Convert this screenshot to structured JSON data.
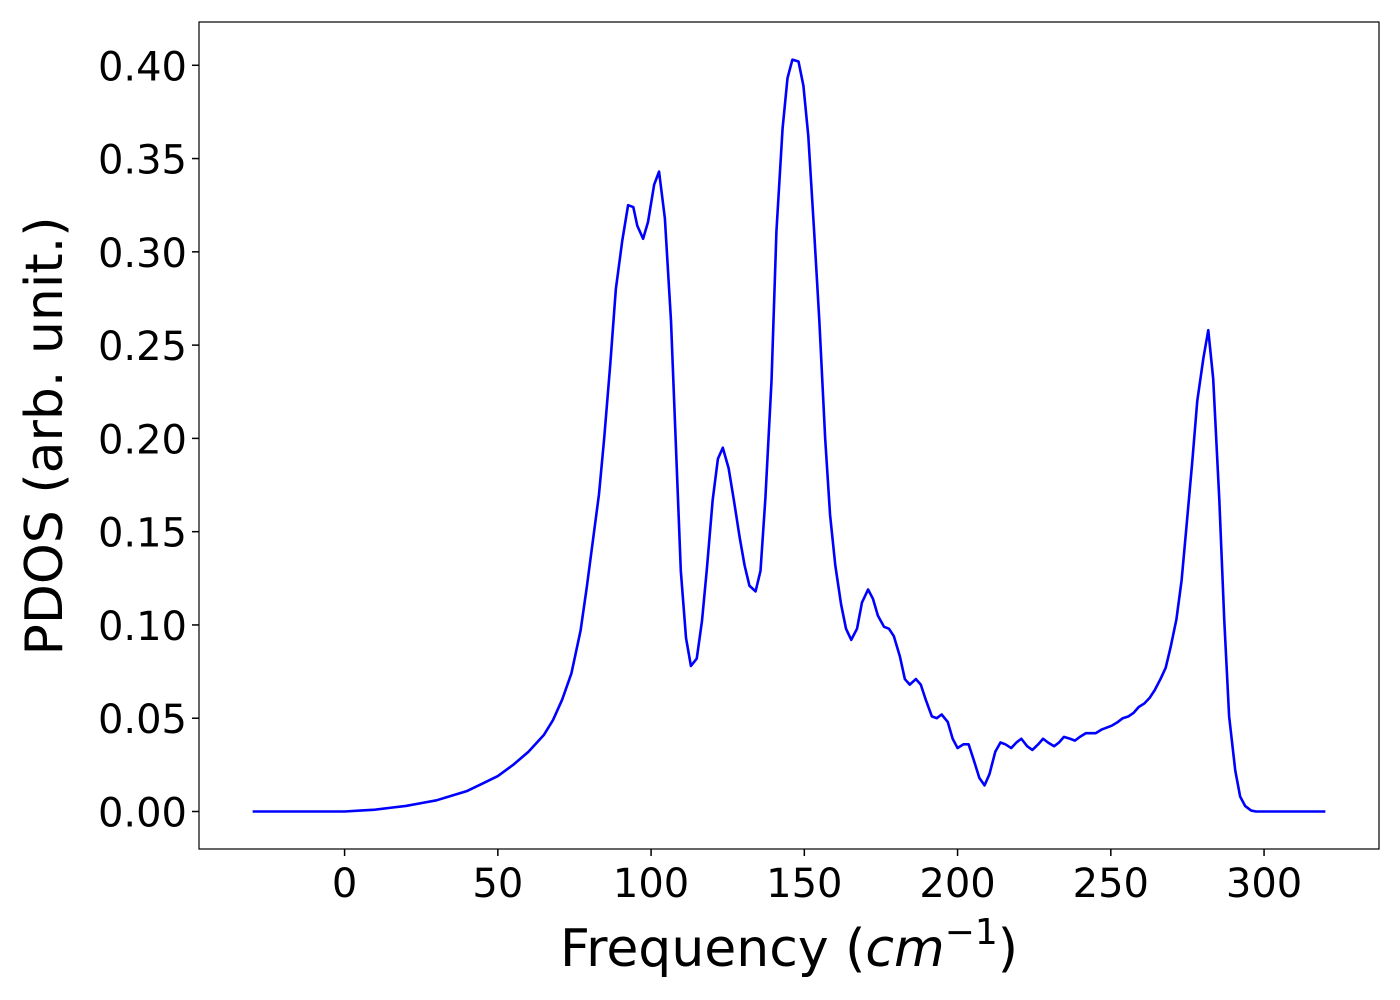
{
  "chart_data": {
    "type": "line",
    "xlabel": [
      "Frequency (",
      "cm",
      "−1",
      ")"
    ],
    "ylabel": "PDOS (arb. unit.)",
    "xlim": [
      -47.5,
      337.5
    ],
    "ylim": [
      -0.0201,
      0.4232
    ],
    "xticks": [
      0,
      50,
      100,
      150,
      200,
      250,
      300
    ],
    "yticks": [
      {
        "value": 0,
        "label": "0.00"
      },
      0.05,
      {
        "value": 0.1,
        "label": "0.10"
      },
      0.15,
      {
        "value": 0.2,
        "label": "0.20"
      },
      0.25,
      {
        "value": 0.3,
        "label": "0.30"
      },
      0.35,
      {
        "value": 0.4,
        "label": "0.40"
      }
    ],
    "x": [
      -30,
      -20,
      -10,
      0,
      5,
      10,
      15,
      20,
      25,
      30,
      35,
      40,
      45,
      50,
      55,
      60,
      65,
      68,
      71,
      74,
      77,
      79,
      81,
      83,
      84.7,
      86.7,
      88.5,
      90.6,
      92.5,
      94.2,
      95.5,
      97.4,
      99,
      101,
      102.6,
      104.5,
      106.5,
      109.7,
      111.4,
      113,
      114.9,
      116.6,
      118.2,
      120.1,
      121.8,
      123.4,
      125.3,
      127,
      128.9,
      130.5,
      132.1,
      134.1,
      135.7,
      137.3,
      139.3,
      140.9,
      142.9,
      144.5,
      146.1,
      148.1,
      149.7,
      151.3,
      153.2,
      154.9,
      156.8,
      158.4,
      160.1,
      162,
      163.6,
      165.3,
      167.2,
      168.8,
      170.8,
      172.4,
      174,
      176,
      177.6,
      179.2,
      181.2,
      182.8,
      184.4,
      186.4,
      188,
      189.6,
      191.6,
      193.2,
      194.8,
      196.8,
      198.4,
      200,
      201.9,
      203.6,
      205.2,
      207.1,
      208.8,
      210.4,
      212.3,
      214,
      215.6,
      217.5,
      219.2,
      220.8,
      222.7,
      224.4,
      226.3,
      227.9,
      229.5,
      231.5,
      233.1,
      234.7,
      236.7,
      238.3,
      239.9,
      241.9,
      243.5,
      245.1,
      247.1,
      248.7,
      250.3,
      252.3,
      253.9,
      255.8,
      257.5,
      259.1,
      261,
      262.7,
      264.3,
      266.2,
      267.9,
      269.5,
      271.4,
      273.1,
      274.7,
      276.6,
      278.2,
      280.2,
      281.8,
      283.4,
      285.4,
      287,
      288.6,
      290.6,
      292.2,
      293.8,
      295.8,
      297.4,
      305,
      320
    ],
    "series": [
      {
        "color": "#0000ff",
        "values": [
          0,
          0,
          0,
          0,
          0.0005,
          0.001,
          0.002,
          0.003,
          0.0045,
          0.006,
          0.0085,
          0.011,
          0.015,
          0.019,
          0.025,
          0.032,
          0.041,
          0.049,
          0.06,
          0.074,
          0.097,
          0.12,
          0.145,
          0.17,
          0.2,
          0.24,
          0.28,
          0.306,
          0.325,
          0.324,
          0.314,
          0.307,
          0.316,
          0.336,
          0.343,
          0.318,
          0.263,
          0.129,
          0.093,
          0.078,
          0.082,
          0.102,
          0.13,
          0.167,
          0.189,
          0.195,
          0.184,
          0.167,
          0.147,
          0.132,
          0.121,
          0.118,
          0.129,
          0.168,
          0.231,
          0.311,
          0.366,
          0.393,
          0.403,
          0.402,
          0.389,
          0.362,
          0.311,
          0.263,
          0.2,
          0.159,
          0.132,
          0.111,
          0.098,
          0.092,
          0.098,
          0.112,
          0.119,
          0.114,
          0.105,
          0.099,
          0.098,
          0.094,
          0.083,
          0.071,
          0.068,
          0.071,
          0.068,
          0.06,
          0.051,
          0.05,
          0.052,
          0.048,
          0.039,
          0.034,
          0.036,
          0.036,
          0.028,
          0.018,
          0.014,
          0.02,
          0.032,
          0.037,
          0.036,
          0.034,
          0.037,
          0.039,
          0.035,
          0.033,
          0.036,
          0.039,
          0.037,
          0.035,
          0.037,
          0.04,
          0.039,
          0.038,
          0.04,
          0.042,
          0.042,
          0.042,
          0.044,
          0.045,
          0.046,
          0.048,
          0.05,
          0.051,
          0.053,
          0.056,
          0.058,
          0.061,
          0.065,
          0.071,
          0.077,
          0.088,
          0.103,
          0.124,
          0.153,
          0.188,
          0.22,
          0.243,
          0.258,
          0.232,
          0.167,
          0.103,
          0.051,
          0.022,
          0.008,
          0.003,
          0.0005,
          0,
          0,
          0
        ]
      }
    ]
  }
}
